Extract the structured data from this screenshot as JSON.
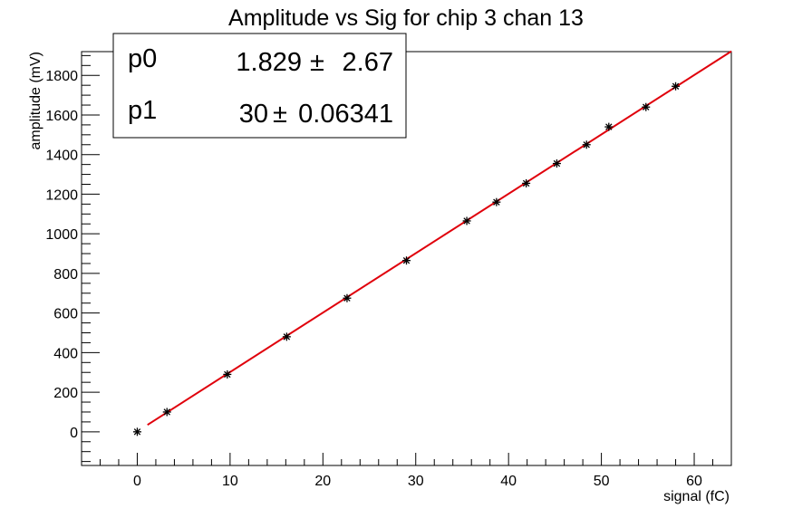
{
  "chart_data": {
    "type": "scatter",
    "title": "Amplitude vs Sig for chip 3 chan 13",
    "xlabel": "signal (fC)",
    "ylabel": "amplitude (mV)",
    "xlim": [
      -6,
      64
    ],
    "ylim": [
      -170,
      1920
    ],
    "x_ticks": [
      0,
      10,
      20,
      30,
      40,
      50,
      60
    ],
    "y_ticks": [
      0,
      200,
      400,
      600,
      800,
      1000,
      1200,
      1400,
      1600,
      1800
    ],
    "grid": false,
    "series": [
      {
        "marker": "asterisk",
        "color": "#000000",
        "points": [
          {
            "x": 0,
            "y": 0
          },
          {
            "x": 3.2,
            "y": 100
          },
          {
            "x": 9.7,
            "y": 290
          },
          {
            "x": 16.1,
            "y": 480
          },
          {
            "x": 22.6,
            "y": 675
          },
          {
            "x": 29.0,
            "y": 865
          },
          {
            "x": 35.5,
            "y": 1065
          },
          {
            "x": 38.7,
            "y": 1160
          },
          {
            "x": 41.9,
            "y": 1255
          },
          {
            "x": 45.2,
            "y": 1355
          },
          {
            "x": 48.4,
            "y": 1450
          },
          {
            "x": 50.8,
            "y": 1540
          },
          {
            "x": 54.8,
            "y": 1640
          },
          {
            "x": 58.0,
            "y": 1745
          }
        ]
      }
    ],
    "fit": {
      "type": "line",
      "color": "#e0000b",
      "x_range": [
        1.1,
        64
      ],
      "p0": 1.829,
      "p1": 30
    },
    "stats_box": {
      "position": "top-left",
      "rows": [
        {
          "name": "p0",
          "value": "1.829",
          "pm": "±",
          "error": "2.67"
        },
        {
          "name": "p1",
          "value": "30",
          "pm": "±",
          "error": "0.06341"
        }
      ]
    }
  }
}
